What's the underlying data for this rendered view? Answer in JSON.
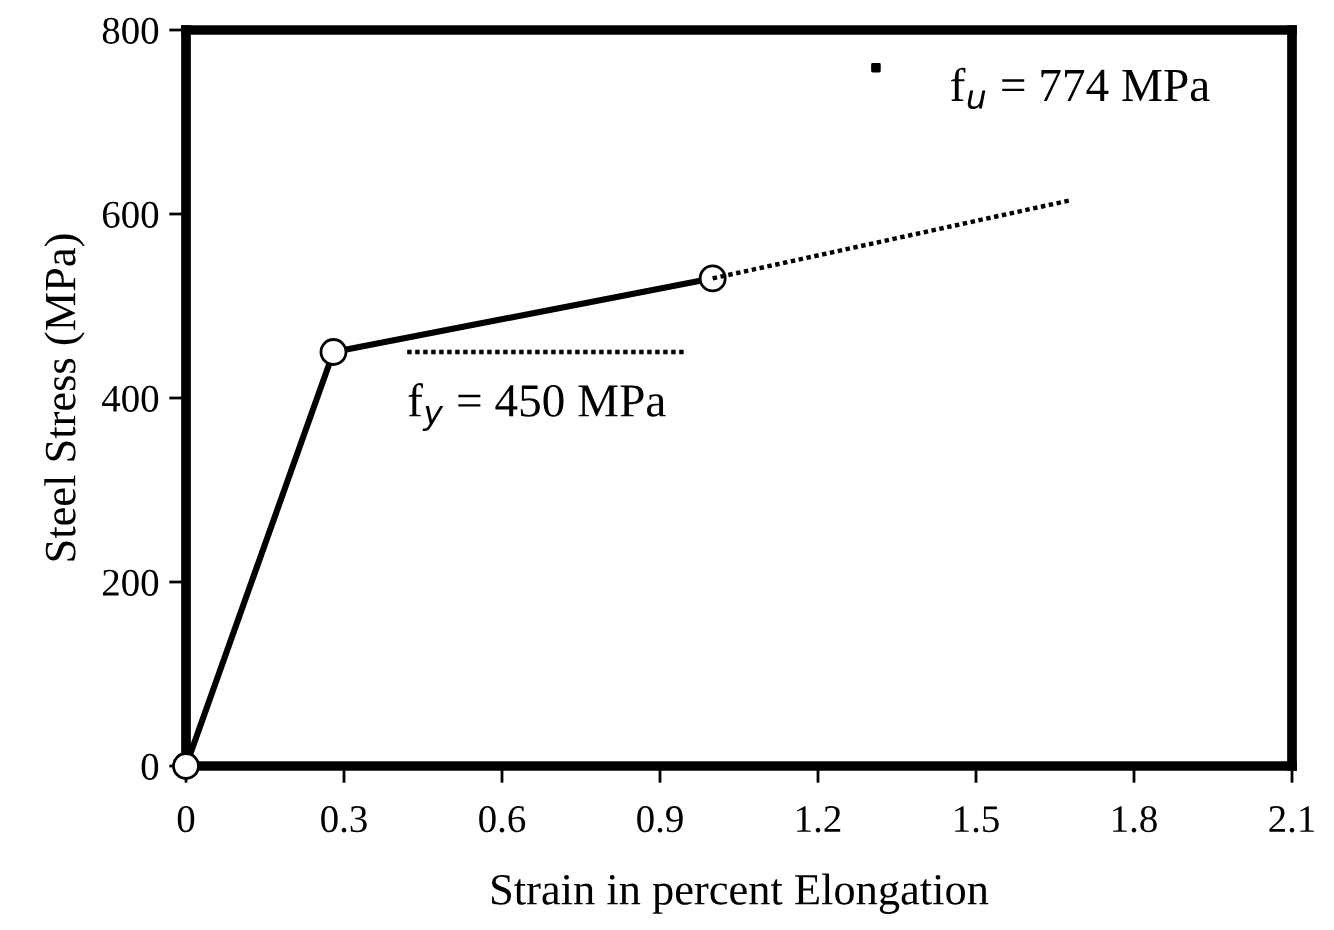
{
  "chart_data": {
    "type": "line",
    "xlabel": "Strain in percent Elongation",
    "ylabel": "Steel Stress (MPa)",
    "xlim": [
      0,
      2.1
    ],
    "xticks": [
      0,
      0.3,
      0.6,
      0.9,
      1.2,
      1.5,
      1.8,
      2.1
    ],
    "ylim": [
      0,
      800
    ],
    "yticks": [
      0,
      200,
      400,
      600,
      800
    ],
    "grid": false,
    "legend": false,
    "series": [
      {
        "color": "#000000",
        "x": [
          0,
          0.28,
          1.0
        ],
        "values": [
          0,
          450,
          530
        ],
        "marker": "circle",
        "line_style": "solid"
      },
      {
        "color": "#000000",
        "x": [
          1.0,
          1.68
        ],
        "values": [
          530,
          615
        ],
        "marker": "none",
        "line_style": "dotted"
      },
      {
        "color": "#000000",
        "x": [
          0.42,
          0.95
        ],
        "values": [
          450,
          450
        ],
        "marker": "none",
        "line_style": "dotted"
      },
      {
        "type": "scatter",
        "color": "#000000",
        "x": [
          1.31
        ],
        "values": [
          759
        ],
        "marker": "square"
      }
    ],
    "annotations": [
      "f$_{y}$ = 450 MPa",
      "f$_{u}$ = 774 MPa"
    ]
  }
}
